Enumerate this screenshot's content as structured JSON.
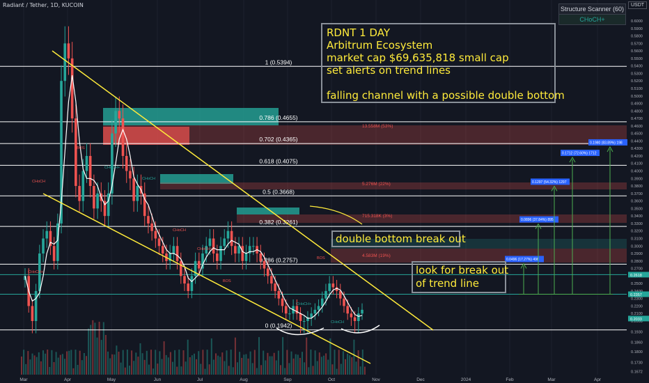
{
  "header": {
    "symbol": "Radiant / Tether, 1D, KUCOIN",
    "currency": "USDT"
  },
  "scanner": {
    "title": "Structure Scanner (60)",
    "value": "CHoCH+"
  },
  "notes": {
    "main": [
      "RDNT 1 DAY",
      "Arbitrum Ecosystem",
      "market cap $69,635,818 small cap",
      "set alerts on trend lines",
      "",
      "falling channel with a possible double bottom"
    ],
    "breakout": "double bottom break out",
    "lookfor": [
      "look for break out",
      "of trend line"
    ]
  },
  "colors": {
    "up": "#26a69a",
    "down": "#ef5350",
    "trend": "#ffeb3b",
    "fib": "#ffffff",
    "target": "#4caf50",
    "label": "#2962ff"
  },
  "chart_data": {
    "type": "candlestick",
    "x_ticks": [
      "Mar",
      "Apr",
      "May",
      "Jun",
      "Jul",
      "Aug",
      "Sep",
      "Oct",
      "Nov",
      "Dec",
      "2024",
      "Feb",
      "Mar",
      "Apr"
    ],
    "y_ticks": [
      0.6,
      0.59,
      0.58,
      0.57,
      0.56,
      0.55,
      0.54,
      0.53,
      0.52,
      0.51,
      0.5,
      0.49,
      0.48,
      0.47,
      0.46,
      0.45,
      0.44,
      0.43,
      0.42,
      0.41,
      0.4,
      0.39,
      0.38,
      0.37,
      0.36,
      0.35,
      0.34,
      0.33,
      0.32,
      0.31,
      0.3,
      0.29,
      0.28,
      0.27,
      0.26,
      0.25,
      0.24,
      0.23,
      0.22,
      0.21,
      0.2,
      0.193,
      0.186,
      0.18,
      0.173,
      0.167
    ],
    "y_tick_labels": [
      "0.6000",
      "0.5900",
      "0.5800",
      "0.5700",
      "0.5600",
      "0.5500",
      "0.5400",
      "0.5300",
      "0.5200",
      "0.5100",
      "0.5000",
      "0.4900",
      "0.4800",
      "0.4700",
      "0.4600",
      "0.4500",
      "0.4400",
      "0.4300",
      "0.4200",
      "0.4100",
      "0.4000",
      "0.3900",
      "0.3800",
      "0.3700",
      "0.3600",
      "0.3500",
      "0.3400",
      "0.3300",
      "0.3200",
      "0.3100",
      "0.3000",
      "0.2900",
      "0.2800",
      "0.2700",
      "0.2600",
      "0.2500",
      "0.2400",
      "0.2300",
      "0.2200",
      "0.2100",
      "0.2000",
      "0.1930",
      "0.1860",
      "0.1800",
      "0.1730",
      "0.1672"
    ],
    "price_tags": [
      {
        "label": "0.2618",
        "value": 0.2618,
        "color": "#26a69a"
      },
      {
        "label": "0.2357",
        "value": 0.2357,
        "color": "#26a69a"
      },
      {
        "label": "0.2033",
        "value": 0.2033,
        "color": "#26a69a"
      }
    ],
    "fib_levels": [
      {
        "label": "1 (0.5394)",
        "value": 0.5394
      },
      {
        "label": "0.786 (0.4655)",
        "value": 0.4655
      },
      {
        "label": "0.702 (0.4365)",
        "value": 0.4365
      },
      {
        "label": "0.618 (0.4075)",
        "value": 0.4075
      },
      {
        "label": "0.5 (0.3668)",
        "value": 0.3668
      },
      {
        "label": "0.382 (0.3261)",
        "value": 0.3261
      },
      {
        "label": "0.286 (0.2757)",
        "value": 0.2757
      },
      {
        "label": "0 (0.1942)",
        "value": 0.1942
      }
    ],
    "zone_labels": [
      "13.558M (53%)",
      "5.276M (22%)",
      "715.318K (3%)",
      "4.583M (19%)"
    ],
    "targets": [
      {
        "label": "0.0496 (17.27%) 496",
        "value": 0.2775
      },
      {
        "label": "0.0896 (37.84%) 895",
        "value": 0.3303
      },
      {
        "label": "0.1297 (54.32%) 1297",
        "value": 0.3806
      },
      {
        "label": "0.1712 (72.60%) 1712",
        "value": 0.419
      },
      {
        "label": "0.1980 (83.89%) 198",
        "value": 0.433
      }
    ],
    "structure_labels": [
      "CHoCH",
      "CHoCH+",
      "BOS"
    ],
    "series": [
      {
        "values": [
          0.26,
          0.22,
          0.2,
          0.24,
          0.29,
          0.31,
          0.32,
          0.3,
          0.28,
          0.33,
          0.52,
          0.57,
          0.55,
          0.47,
          0.38,
          0.36,
          0.4,
          0.42,
          0.38,
          0.35,
          0.37,
          0.36,
          0.34,
          0.37,
          0.45,
          0.48,
          0.47,
          0.42,
          0.4,
          0.39,
          0.36,
          0.38,
          0.37,
          0.34,
          0.33,
          0.32,
          0.31,
          0.3,
          0.29,
          0.28,
          0.29,
          0.3,
          0.28,
          0.26,
          0.25,
          0.24,
          0.26,
          0.28,
          0.27,
          0.29,
          0.3,
          0.31,
          0.29,
          0.28,
          0.3,
          0.31,
          0.32,
          0.3,
          0.29,
          0.3,
          0.28,
          0.29,
          0.3,
          0.3,
          0.29,
          0.28,
          0.27,
          0.26,
          0.25,
          0.24,
          0.23,
          0.22,
          0.21,
          0.21,
          0.22,
          0.21,
          0.2,
          0.2,
          0.205,
          0.21,
          0.215,
          0.22,
          0.23,
          0.24,
          0.25,
          0.245,
          0.24,
          0.23,
          0.22,
          0.21,
          0.205,
          0.2,
          0.21,
          0.215
        ]
      }
    ]
  }
}
